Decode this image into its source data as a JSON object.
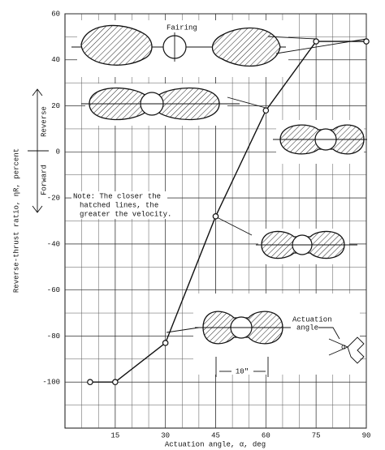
{
  "chart_data": {
    "type": "line",
    "x": [
      7.5,
      15,
      30,
      45,
      60,
      75,
      90
    ],
    "series": [
      {
        "values": [
          -100,
          -100,
          -83,
          -28,
          18,
          48,
          48
        ],
        "color": "#111111"
      }
    ],
    "xlim": [
      0,
      90
    ],
    "ylim": [
      -120,
      60
    ],
    "xticks": [
      15,
      30,
      45,
      60,
      75,
      90
    ],
    "yticks": [
      -100,
      -80,
      -60,
      -40,
      -20,
      0,
      20,
      40,
      60
    ],
    "grid": true,
    "xlabel": "Actuation angle, α, deg",
    "ylabel": "Reverse-thrust ratio, ηR, percent",
    "annotations": {
      "fairing": "Fairing",
      "reverse": "Reverse",
      "forward": "Forward",
      "note": [
        "Note: The closer the",
        "hatched lines, the",
        "greater the velocity."
      ],
      "actuation": [
        "Actuation",
        "angle"
      ],
      "alpha": "α",
      "dimension": "10\""
    }
  }
}
